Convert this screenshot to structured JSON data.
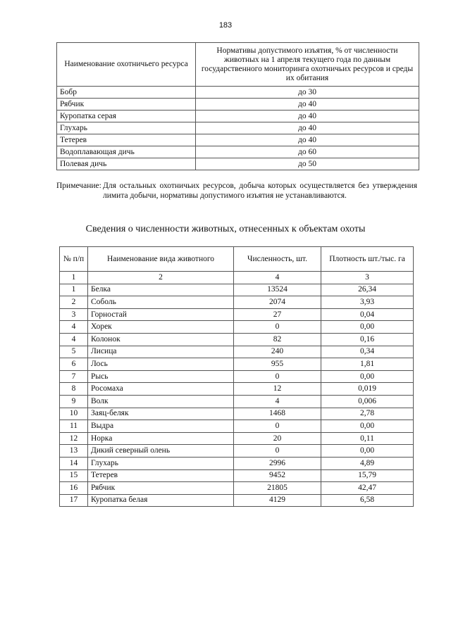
{
  "page_number": "183",
  "table1": {
    "headers": [
      "Наименование охотничьего ресурса",
      "Нормативы допустимого изъятия, % от численности животных на 1 апреля текущего года по данным государственного мониторинга охотничьих ресурсов и среды их обитания"
    ],
    "rows": [
      {
        "name": "Бобр",
        "value": "до 30"
      },
      {
        "name": "Рябчик",
        "value": "до 40"
      },
      {
        "name": "Куропатка серая",
        "value": "до 40"
      },
      {
        "name": "Глухарь",
        "value": "до 40"
      },
      {
        "name": "Тетерев",
        "value": "до 40"
      },
      {
        "name": "Водоплавающая дичь",
        "value": "до 60"
      },
      {
        "name": "Полевая дичь",
        "value": "до 50"
      }
    ]
  },
  "note": {
    "label": "Примечание:",
    "text": "Для остальных охотничьих ресурсов, добыча которых осуществляется без утверждения лимита добычи, нормативы допустимого изъятия не устанавливаются."
  },
  "title": "Сведения о численности животных, отнесенных к объектам охоты",
  "table2": {
    "headers": [
      "№ п/п",
      "Наименование вида животного",
      "Численность, шт.",
      "Плотность шт./тыс. га"
    ],
    "col_numbers": [
      "1",
      "2",
      "4",
      "3"
    ],
    "rows": [
      [
        "1",
        "Белка",
        "13524",
        "26,34"
      ],
      [
        "2",
        "Соболь",
        "2074",
        "3,93"
      ],
      [
        "3",
        "Горностай",
        "27",
        "0,04"
      ],
      [
        "4",
        "Хорек",
        "0",
        "0,00"
      ],
      [
        "4",
        "Колонок",
        "82",
        "0,16"
      ],
      [
        "5",
        "Лисица",
        "240",
        "0,34"
      ],
      [
        "6",
        "Лось",
        "955",
        "1,81"
      ],
      [
        "7",
        "Рысь",
        "0",
        "0,00"
      ],
      [
        "8",
        "Росомаха",
        "12",
        "0,019"
      ],
      [
        "9",
        "Волк",
        "4",
        "0,006"
      ],
      [
        "10",
        "Заяц-беляк",
        "1468",
        "2,78"
      ],
      [
        "11",
        "Выдра",
        "0",
        "0,00"
      ],
      [
        "12",
        "Норка",
        "20",
        "0,11"
      ],
      [
        "13",
        "Дикий северный олень",
        "0",
        "0,00"
      ],
      [
        "14",
        "Глухарь",
        "2996",
        "4,89"
      ],
      [
        "15",
        "Тетерев",
        "9452",
        "15,79"
      ],
      [
        "16",
        "Рябчик",
        "21805",
        "42,47"
      ],
      [
        "17",
        "Куропатка белая",
        "4129",
        "6,58"
      ]
    ]
  }
}
